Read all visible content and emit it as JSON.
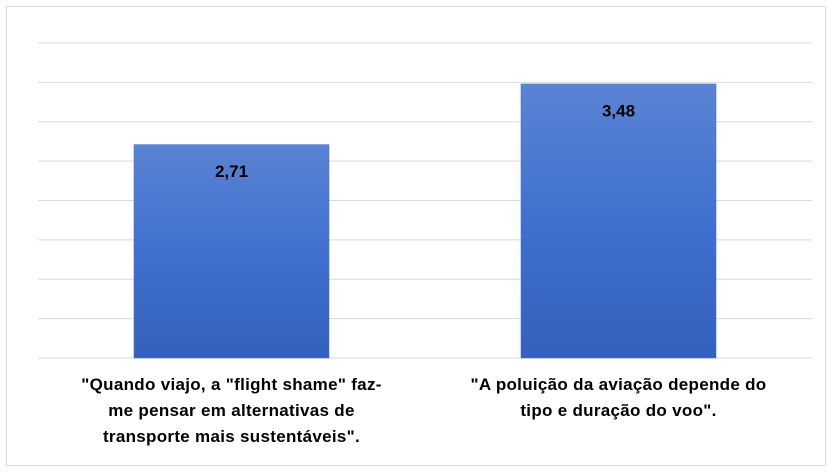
{
  "chart_data": {
    "type": "bar",
    "categories": [
      "\"Quando viajo, a \"flight shame\" faz-\nme pensar em alternativas de\ntransporte mais sustentáveis\".",
      "\"A poluição da aviação depende do\ntipo e duração do voo\"."
    ],
    "values": [
      2.71,
      3.48
    ],
    "value_labels": [
      "2,71",
      "3,48"
    ],
    "color": "#4472c4",
    "ylim": [
      0,
      4
    ],
    "yticks": [
      0,
      0.5,
      1,
      1.5,
      2,
      2.5,
      3,
      3.5,
      4
    ],
    "show_ytick_labels": false,
    "grid": true
  }
}
